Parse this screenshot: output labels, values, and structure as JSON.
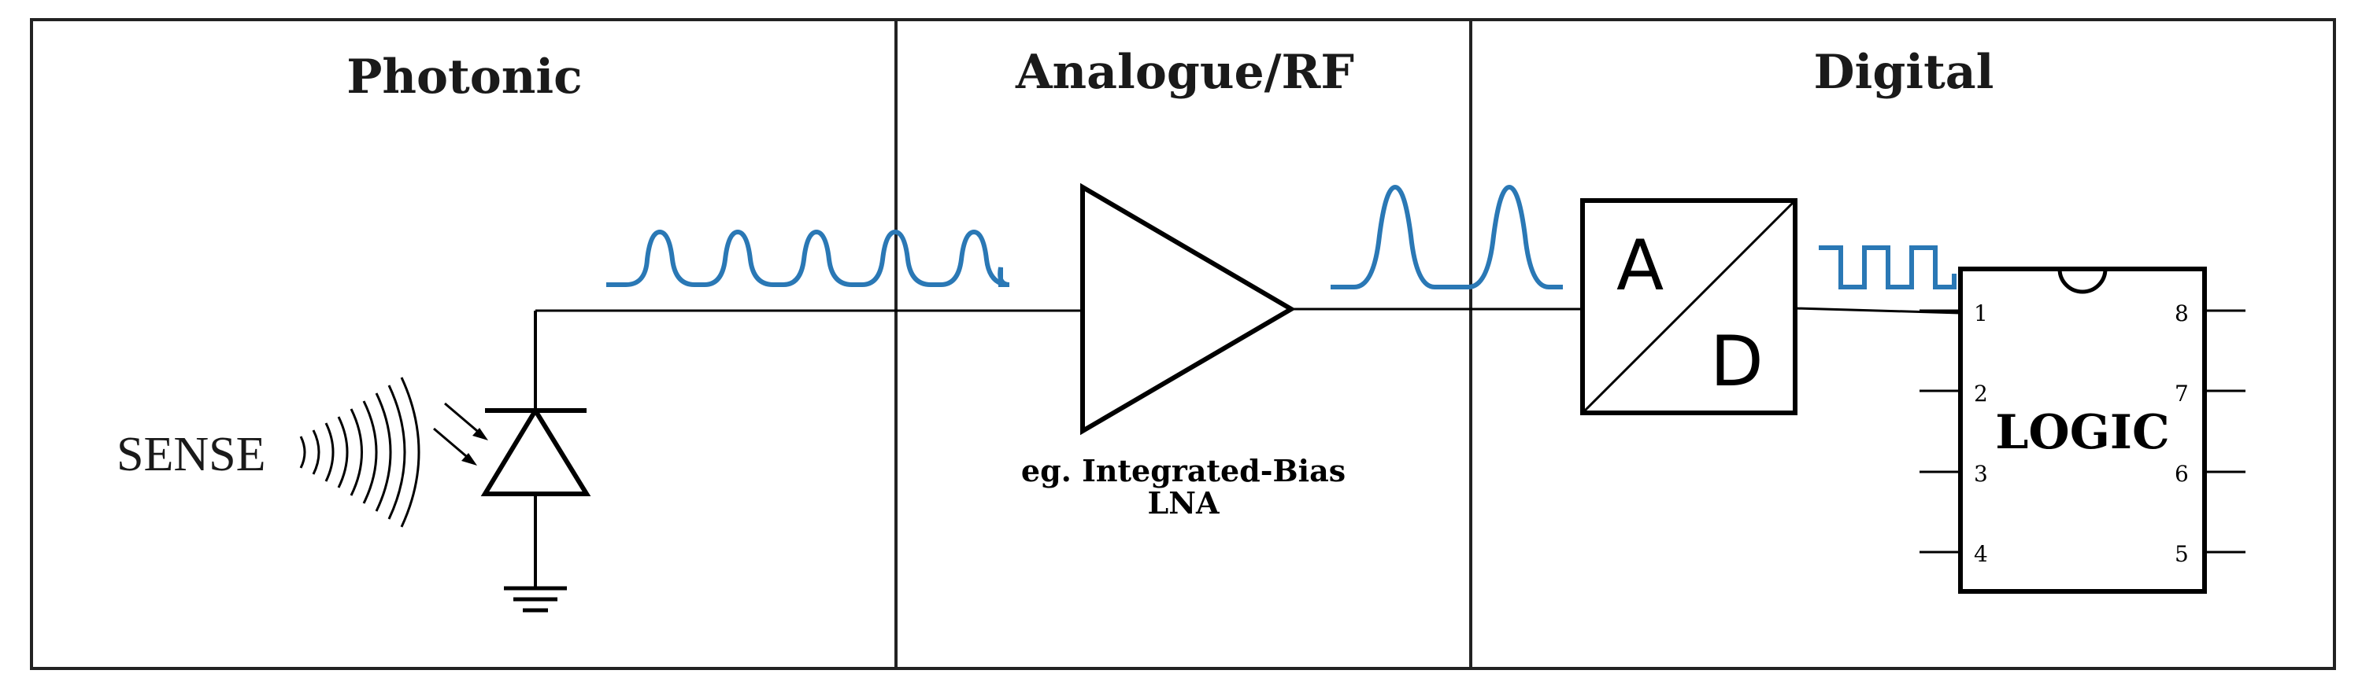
{
  "colors": {
    "signal": "#2a78b5",
    "line": "#000000"
  },
  "sections": [
    {
      "id": "photonic",
      "title": "Photonic"
    },
    {
      "id": "analogue",
      "title": "Analogue/RF"
    },
    {
      "id": "digital",
      "title": "Digital"
    }
  ],
  "components": {
    "sense_label": "SENSE",
    "amplifier_caption_line1": "eg. Integrated-Bias",
    "amplifier_caption_line2": "LNA",
    "adc_a": "A",
    "adc_d": "D",
    "logic_label": "LOGIC",
    "chip_pins_left": [
      "1",
      "2",
      "3",
      "4"
    ],
    "chip_pins_right": [
      "8",
      "7",
      "6",
      "5"
    ]
  },
  "icons": [
    "photodiode-icon",
    "ground-icon",
    "sound-wave-icon",
    "amplifier-icon",
    "adc-icon",
    "ic-chip-icon"
  ]
}
